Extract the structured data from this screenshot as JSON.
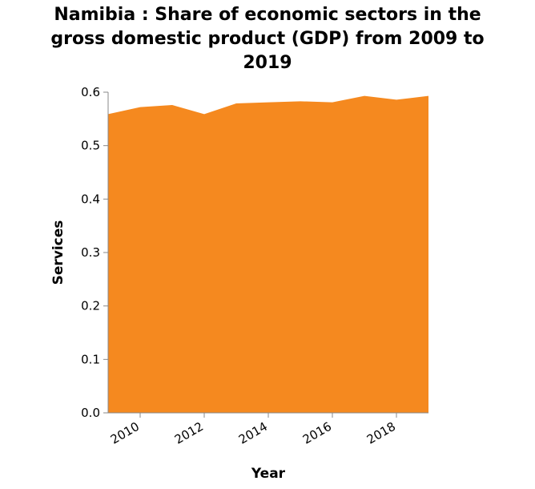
{
  "chart_data": {
    "type": "area",
    "title_lines": [
      "Namibia : Share of economic sectors in the",
      "gross domestic product (GDP) from 2009 to",
      "2019"
    ],
    "xlabel": "Year",
    "ylabel": "Services",
    "x": [
      2009,
      2010,
      2011,
      2012,
      2013,
      2014,
      2015,
      2016,
      2017,
      2018,
      2019
    ],
    "series": [
      {
        "values": [
          0.559,
          0.572,
          0.576,
          0.559,
          0.579,
          0.581,
          0.583,
          0.581,
          0.593,
          0.586,
          0.593
        ]
      }
    ],
    "xticks": [
      "2010",
      "2012",
      "2014",
      "2016",
      "2018"
    ],
    "yticks": [
      "0.0",
      "0.1",
      "0.2",
      "0.3",
      "0.4",
      "0.5",
      "0.6"
    ],
    "xlim": [
      2009,
      2019
    ],
    "ylim": [
      0,
      0.6
    ],
    "color": "#f5891f",
    "grid": false,
    "legend": "none"
  }
}
